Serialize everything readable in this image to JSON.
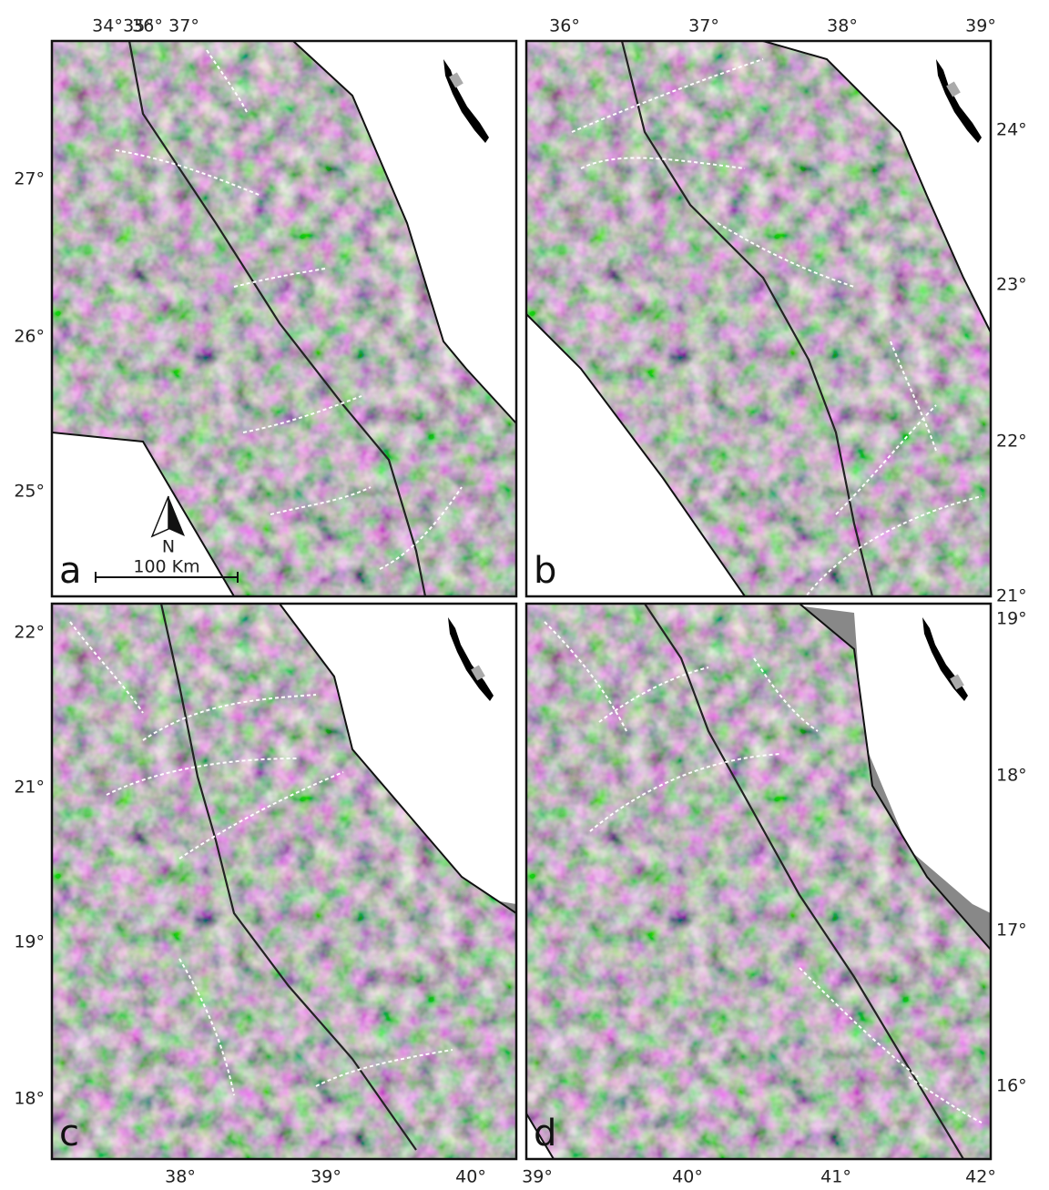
{
  "panels": [
    {
      "letter": "a",
      "top_labels": [
        "34°",
        "35°",
        "36°",
        "37°"
      ],
      "left_labels": [
        "27°",
        "26°",
        "25°"
      ]
    },
    {
      "letter": "b",
      "top_labels": [
        "36°",
        "37°",
        "38°",
        "39°"
      ],
      "right_labels": [
        "24°",
        "23°",
        "22°",
        "21°"
      ]
    },
    {
      "letter": "c",
      "left_labels": [
        "22°",
        "21°",
        "19°",
        "18°"
      ],
      "bottom_labels": [
        "38°",
        "39°",
        "40°"
      ]
    },
    {
      "letter": "d",
      "bottom_labels": [
        "39°",
        "40°",
        "41°",
        "42°"
      ],
      "right_labels": [
        "19°",
        "18°",
        "17°",
        "16°"
      ]
    }
  ],
  "north_label": "N",
  "scale_label": "100 Km"
}
